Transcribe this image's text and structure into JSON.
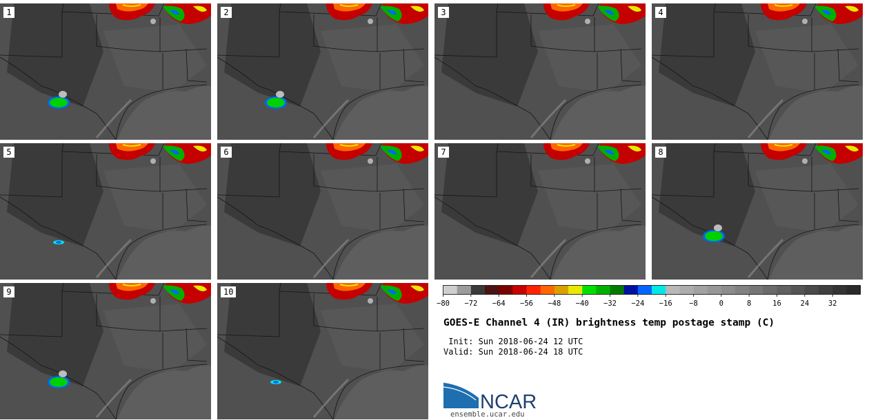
{
  "panels": [
    {
      "label": "1",
      "storm": "strong"
    },
    {
      "label": "2",
      "storm": "strong"
    },
    {
      "label": "3",
      "storm": "none"
    },
    {
      "label": "4",
      "storm": "none"
    },
    {
      "label": "5",
      "storm": "weak"
    },
    {
      "label": "6",
      "storm": "none"
    },
    {
      "label": "7",
      "storm": "none"
    },
    {
      "label": "8",
      "storm": "strong"
    },
    {
      "label": "9",
      "storm": "strong"
    },
    {
      "label": "10",
      "storm": "weak"
    }
  ],
  "colorbar": {
    "min": -80,
    "max": 40,
    "step": 4,
    "tick_labels": [
      "−80",
      "−72",
      "−64",
      "−56",
      "−48",
      "−40",
      "−32",
      "−24",
      "−16",
      "−8",
      "0",
      "8",
      "16",
      "24",
      "32"
    ],
    "colors": [
      "#cfcfcf",
      "#9c9c9c",
      "#3a3a3a",
      "#4a1414",
      "#7a0000",
      "#c80000",
      "#ff2200",
      "#ff6600",
      "#d9a000",
      "#e8e800",
      "#00e000",
      "#00b000",
      "#007a00",
      "#0010a0",
      "#0066ff",
      "#00e8e8",
      "#b8b8b8",
      "#adadad",
      "#a2a2a2",
      "#979797",
      "#8c8c8c",
      "#818181",
      "#767676",
      "#6b6b6b",
      "#606060",
      "#555555",
      "#4a4a4a",
      "#3f3f3f",
      "#343434",
      "#2a2a2a"
    ]
  },
  "title": "GOES-E Channel 4 (IR) brightness temp postage stamp (C)",
  "init_line": " Init: Sun 2018-06-24 12 UTC",
  "valid_line": "Valid: Sun 2018-06-24 18 UTC",
  "logo": {
    "text": "NCAR",
    "url": "ensemble.ucar.edu"
  }
}
